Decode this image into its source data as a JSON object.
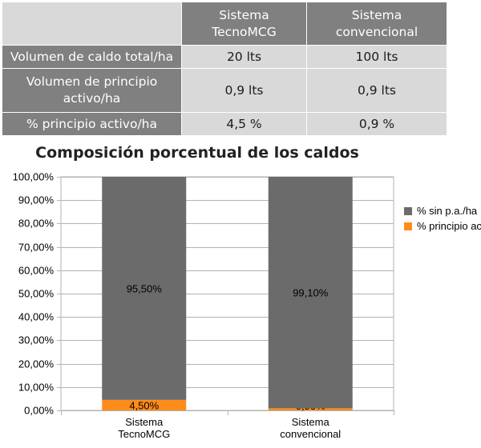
{
  "table": {
    "headers": [
      "",
      "Sistema TecnoMCG",
      "Sistema convencional"
    ],
    "rows": [
      {
        "label": "Volumen de caldo total/ha",
        "values": [
          "20 lts",
          "100 lts"
        ]
      },
      {
        "label": "Volumen de principio activo/ha",
        "values": [
          "0,9 lts",
          "0,9 lts"
        ]
      },
      {
        "label": "% principio activo/ha",
        "values": [
          "4,5 %",
          "0,9 %"
        ]
      }
    ]
  },
  "colors": {
    "header_bg": "#808080",
    "cell_bg": "#d9d9d9",
    "series_sin_pa": "#6b6b6b",
    "series_principio": "#ff8c1a"
  },
  "chart_data": {
    "type": "bar",
    "stacked": true,
    "percent_stacked": true,
    "title": "Composición porcentual de los caldos",
    "categories": [
      [
        "Sistema",
        "TecnoMCG"
      ],
      [
        "Sistema",
        "convencional"
      ]
    ],
    "series": [
      {
        "name": "% principio activo/ha",
        "values": [
          4.5,
          0.9
        ],
        "labels": [
          "4,50%",
          "0,90%"
        ],
        "color": "#ff8c1a"
      },
      {
        "name": "% sin p.a./ha",
        "values": [
          95.5,
          99.1
        ],
        "labels": [
          "95,50%",
          "99,10%"
        ],
        "color": "#6b6b6b"
      }
    ],
    "y_ticks": [
      "0,00%",
      "10,00%",
      "20,00%",
      "30,00%",
      "40,00%",
      "50,00%",
      "60,00%",
      "70,00%",
      "80,00%",
      "90,00%",
      "100,00%"
    ],
    "ylim": [
      0,
      100
    ],
    "grid": true,
    "legend_position": "right",
    "legend": [
      "% sin p.a./ha",
      "% principio activo/ha"
    ]
  }
}
